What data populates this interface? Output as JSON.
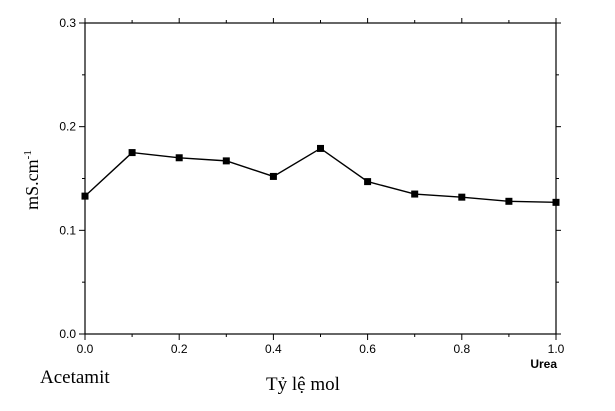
{
  "chart_data": {
    "type": "line",
    "xlabel": "Tỷ lệ mol",
    "ylabel_base": "mS.cm",
    "ylabel_exponent": "-1",
    "left_end_label": "Acetamit",
    "right_end_label": "Urea",
    "xlim": [
      0.0,
      1.0
    ],
    "ylim": [
      0.0,
      0.3
    ],
    "x_ticks": [
      "0.0",
      "0.2",
      "0.4",
      "0.6",
      "0.8",
      "1.0"
    ],
    "y_ticks": [
      "0.0",
      "0.1",
      "0.2",
      "0.3"
    ],
    "grid": false,
    "marker": "square",
    "series": [
      {
        "color": "#000000",
        "x": [
          0.0,
          0.1,
          0.2,
          0.3,
          0.4,
          0.5,
          0.6,
          0.7,
          0.8,
          0.9,
          1.0
        ],
        "values": [
          0.133,
          0.175,
          0.17,
          0.167,
          0.152,
          0.179,
          0.147,
          0.135,
          0.132,
          0.128,
          0.127
        ]
      }
    ]
  }
}
